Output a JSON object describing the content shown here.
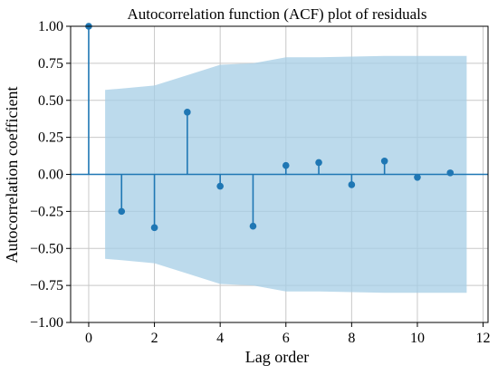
{
  "chart_data": {
    "type": "stem",
    "title": "Autocorrelation function (ACF) plot of residuals",
    "xlabel": "Lag order",
    "ylabel": "Autocorrelation coefficient",
    "xlim": [
      -0.55,
      12.15
    ],
    "ylim": [
      -1.0,
      1.0
    ],
    "xticks": [
      0,
      2,
      4,
      6,
      8,
      10,
      12
    ],
    "xtick_labels": [
      "0",
      "2",
      "4",
      "6",
      "8",
      "10",
      "12"
    ],
    "yticks": [
      -1.0,
      -0.75,
      -0.5,
      -0.25,
      0.0,
      0.25,
      0.5,
      0.75,
      1.0
    ],
    "ytick_labels": [
      "−1.00",
      "−0.75",
      "−0.50",
      "−0.25",
      "0.00",
      "0.25",
      "0.50",
      "0.75",
      "1.00"
    ],
    "grid": true,
    "series": [
      {
        "lags": [
          0,
          1,
          2,
          3,
          4,
          5,
          6,
          7,
          8,
          9,
          10,
          11
        ],
        "values": [
          1.0,
          -0.25,
          -0.36,
          0.42,
          -0.08,
          -0.35,
          0.06,
          0.08,
          -0.07,
          0.09,
          -0.02,
          0.01
        ]
      }
    ],
    "confidence_band": {
      "lags": [
        0.5,
        1,
        2,
        3,
        4,
        5,
        6,
        7,
        8,
        9,
        10,
        11,
        11.5
      ],
      "upper": [
        0.57,
        0.58,
        0.6,
        0.67,
        0.74,
        0.75,
        0.79,
        0.79,
        0.795,
        0.8,
        0.8,
        0.8,
        0.8
      ]
    },
    "colors": {
      "stem": "#1f77b4",
      "band": "#a6cde6",
      "grid": "#c8c8c8"
    }
  }
}
